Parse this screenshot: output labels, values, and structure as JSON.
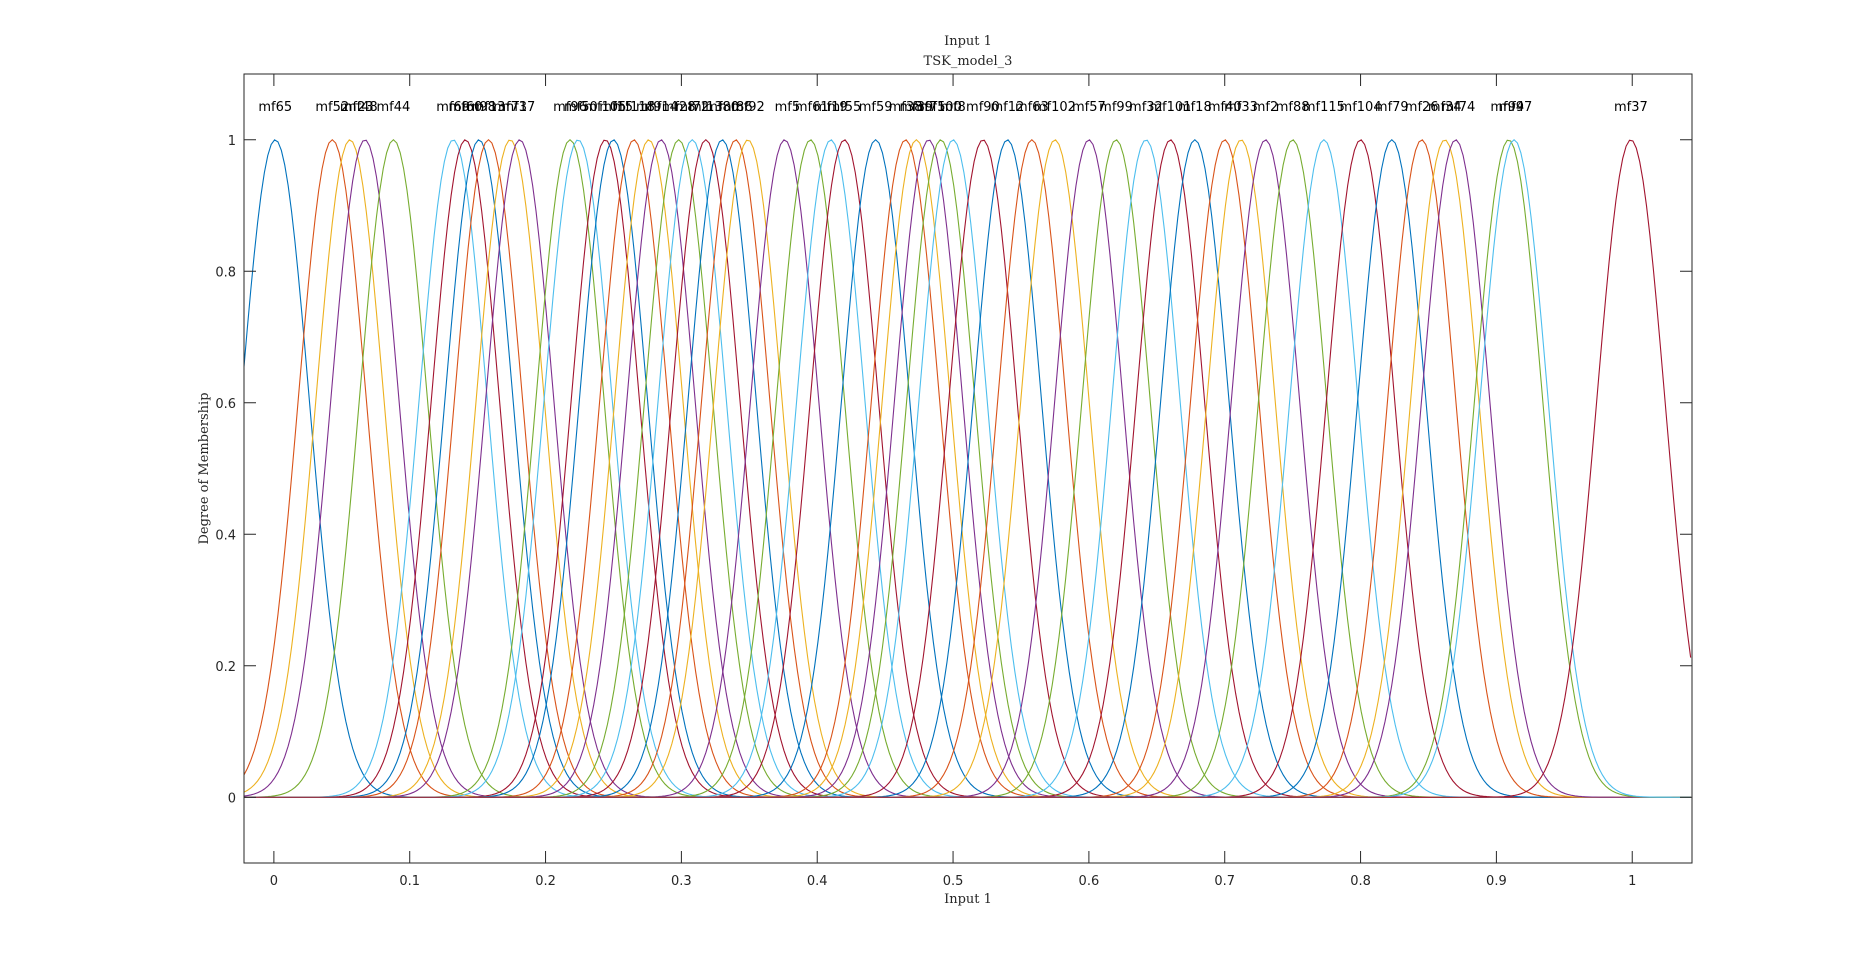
{
  "chart_data": {
    "type": "line",
    "title": "Input 1",
    "subtitle": "TSK_model_3",
    "xlabel": "Input 1",
    "ylabel": "Degree of Membership",
    "xlim": [
      -0.022,
      1.044
    ],
    "ylim": [
      -0.1,
      1.1
    ],
    "xticks": [
      0,
      0.1,
      0.2,
      0.3,
      0.4,
      0.5,
      0.6,
      0.7,
      0.8,
      0.9,
      1
    ],
    "yticks": [
      0,
      0.2,
      0.4,
      0.6,
      0.8,
      1
    ],
    "grid": false,
    "legend": "none",
    "curve_shape": "gaussian membership functions",
    "sigma": 0.025,
    "colors": [
      "#0072BD",
      "#D95319",
      "#EDB120",
      "#7E2F8E",
      "#77AC30",
      "#4DBEEE",
      "#A2142F"
    ],
    "series": [
      {
        "name": "mf65",
        "center": 0.001
      },
      {
        "name": "mf52",
        "center": 0.043
      },
      {
        "name": "mf23",
        "center": 0.056
      },
      {
        "name": "mf48",
        "center": 0.067
      },
      {
        "name": "mf44",
        "center": 0.088
      },
      {
        "name": "mf69",
        "center": 0.132
      },
      {
        "name": "mf60",
        "center": 0.141
      },
      {
        "name": "mf98",
        "center": 0.151
      },
      {
        "name": "mf13",
        "center": 0.158
      },
      {
        "name": "mf71",
        "center": 0.174
      },
      {
        "name": "mf37b",
        "center": 0.181
      },
      {
        "name": "mf96",
        "center": 0.218
      },
      {
        "name": "mf50",
        "center": 0.224
      },
      {
        "name": "mf105",
        "center": 0.244
      },
      {
        "name": "mf15",
        "center": 0.25
      },
      {
        "name": "mf118",
        "center": 0.265
      },
      {
        "name": "mf9",
        "center": 0.276
      },
      {
        "name": "mf14",
        "center": 0.285
      },
      {
        "name": "mf28",
        "center": 0.298
      },
      {
        "name": "mf72",
        "center": 0.308
      },
      {
        "name": "mf13c",
        "center": 0.318
      },
      {
        "name": "mf80",
        "center": 0.33
      },
      {
        "name": "mf86",
        "center": 0.34
      },
      {
        "name": "mf92",
        "center": 0.349
      },
      {
        "name": "mf5",
        "center": 0.376
      },
      {
        "name": "mf61",
        "center": 0.395
      },
      {
        "name": "mf19",
        "center": 0.41
      },
      {
        "name": "mf55",
        "center": 0.42
      },
      {
        "name": "mf59",
        "center": 0.443
      },
      {
        "name": "mf38",
        "center": 0.465
      },
      {
        "name": "mf39",
        "center": 0.473
      },
      {
        "name": "mf75",
        "center": 0.482
      },
      {
        "name": "mf100",
        "center": 0.491
      },
      {
        "name": "mf8",
        "center": 0.5
      },
      {
        "name": "mf90",
        "center": 0.522
      },
      {
        "name": "mf12",
        "center": 0.54
      },
      {
        "name": "mf63",
        "center": 0.558
      },
      {
        "name": "mf102",
        "center": 0.575
      },
      {
        "name": "mf57",
        "center": 0.6
      },
      {
        "name": "mf99",
        "center": 0.62
      },
      {
        "name": "mf32",
        "center": 0.642
      },
      {
        "name": "mf101",
        "center": 0.66
      },
      {
        "name": "mf18",
        "center": 0.678
      },
      {
        "name": "mf40",
        "center": 0.7
      },
      {
        "name": "mf33",
        "center": 0.712
      },
      {
        "name": "mf2",
        "center": 0.73
      },
      {
        "name": "mf88",
        "center": 0.75
      },
      {
        "name": "mf115",
        "center": 0.773
      },
      {
        "name": "mf104",
        "center": 0.8
      },
      {
        "name": "mf79",
        "center": 0.823
      },
      {
        "name": "mf26",
        "center": 0.845
      },
      {
        "name": "mf34",
        "center": 0.862
      },
      {
        "name": "mf74",
        "center": 0.87
      },
      {
        "name": "mf94",
        "center": 0.909
      },
      {
        "name": "mf97",
        "center": 0.913
      },
      {
        "name": "mf37",
        "center": 0.999
      }
    ],
    "peak_labels": [
      {
        "text": "mf65",
        "x": 0.001
      },
      {
        "text": "mf52",
        "x": 0.043
      },
      {
        "text": "mf23",
        "x": 0.061
      },
      {
        "text": "mf48",
        "x": 0.064
      },
      {
        "text": "mf44",
        "x": 0.088
      },
      {
        "text": "mf69",
        "x": 0.132
      },
      {
        "text": "mf60",
        "x": 0.141
      },
      {
        "text": "mf98",
        "x": 0.151
      },
      {
        "text": "mf13",
        "x": 0.158
      },
      {
        "text": "mf71",
        "x": 0.174
      },
      {
        "text": "mf37",
        "x": 0.18
      },
      {
        "text": "mf96",
        "x": 0.218
      },
      {
        "text": "mf50",
        "x": 0.226
      },
      {
        "text": "mf105",
        "x": 0.244
      },
      {
        "text": "mf15",
        "x": 0.252
      },
      {
        "text": "mf118",
        "x": 0.265
      },
      {
        "text": "mf9",
        "x": 0.276
      },
      {
        "text": "mf14",
        "x": 0.285
      },
      {
        "text": "mf28",
        "x": 0.298
      },
      {
        "text": "mf72",
        "x": 0.308
      },
      {
        "text": "mf13",
        "x": 0.318
      },
      {
        "text": "mf80",
        "x": 0.33
      },
      {
        "text": "mf86",
        "x": 0.34
      },
      {
        "text": "mf92",
        "x": 0.349
      },
      {
        "text": "mf5",
        "x": 0.378
      },
      {
        "text": "mf61",
        "x": 0.396
      },
      {
        "text": "mf19",
        "x": 0.41
      },
      {
        "text": "mf55",
        "x": 0.42
      },
      {
        "text": "mf59",
        "x": 0.443
      },
      {
        "text": "mf38",
        "x": 0.465
      },
      {
        "text": "mf39",
        "x": 0.473
      },
      {
        "text": "mf75",
        "x": 0.482
      },
      {
        "text": "mf100",
        "x": 0.491
      },
      {
        "text": "mf8",
        "x": 0.5
      },
      {
        "text": "mf90",
        "x": 0.522
      },
      {
        "text": "mf12",
        "x": 0.54
      },
      {
        "text": "mf63",
        "x": 0.558
      },
      {
        "text": "mf102",
        "x": 0.575
      },
      {
        "text": "mf57",
        "x": 0.6
      },
      {
        "text": "mf99",
        "x": 0.62
      },
      {
        "text": "mf32",
        "x": 0.642
      },
      {
        "text": "mf101",
        "x": 0.66
      },
      {
        "text": "mf18",
        "x": 0.678
      },
      {
        "text": "mf40",
        "x": 0.7
      },
      {
        "text": "mf33",
        "x": 0.712
      },
      {
        "text": "mf2",
        "x": 0.73
      },
      {
        "text": "mf88",
        "x": 0.75
      },
      {
        "text": "mf115",
        "x": 0.773
      },
      {
        "text": "mf104",
        "x": 0.8
      },
      {
        "text": "mf79",
        "x": 0.823
      },
      {
        "text": "mf26",
        "x": 0.845
      },
      {
        "text": "mf34",
        "x": 0.862
      },
      {
        "text": "mf74",
        "x": 0.872
      },
      {
        "text": "mf94",
        "x": 0.908
      },
      {
        "text": "mf97",
        "x": 0.914
      },
      {
        "text": "mf37",
        "x": 0.999
      }
    ]
  }
}
